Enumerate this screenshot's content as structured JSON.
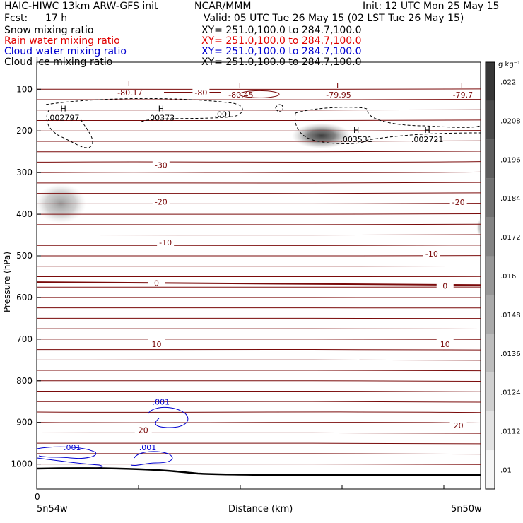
{
  "header": {
    "title_left": "HAIC-HIWC 13km ARW-GFS init",
    "title_center": "NCAR/MMM",
    "init": "Init: 12 UTC Mon 25 May 15",
    "fcst_label": "Fcst:",
    "fcst_value": "17 h",
    "valid": "Valid: 05 UTC Tue 26 May 15 (02 LST Tue 26 May 15)"
  },
  "fields": [
    {
      "name": "Snow mixing ratio",
      "xy": "XY= 251.0,100.0 to 284.7,100.0",
      "color": "#000000"
    },
    {
      "name": "Rain water mixing ratio",
      "xy": "XY= 251.0,100.0 to 284.7,100.0",
      "color": "#e00000"
    },
    {
      "name": "Cloud water mixing ratio",
      "xy": "XY= 251.0,100.0 to 284.7,100.0",
      "color": "#0000d0"
    },
    {
      "name": "Cloud ice mixing ratio",
      "xy": "XY= 251.0,100.0 to 284.7,100.0",
      "color": "#000000"
    }
  ],
  "chart_data": {
    "type": "cross-section",
    "xlabel": "Distance (km)",
    "ylabel": "Pressure (hPa)",
    "x_ticks": [
      "0"
    ],
    "x_left_label": "5n54w",
    "x_right_label": "5n50w",
    "yticks": [
      100,
      200,
      300,
      400,
      500,
      600,
      700,
      800,
      900,
      1000
    ],
    "ylim": [
      1060,
      35
    ],
    "temperature_labels": [
      {
        "value": "-80",
        "p": 108,
        "x": 0.37
      },
      {
        "value": "-30",
        "p": 282,
        "x": 0.28
      },
      {
        "value": "-20",
        "p": 370,
        "x": 0.28
      },
      {
        "value": "-20",
        "p": 371,
        "x": 0.95
      },
      {
        "value": "-10",
        "p": 468,
        "x": 0.29
      },
      {
        "value": "-10",
        "p": 495,
        "x": 0.89
      },
      {
        "value": "0",
        "p": 565,
        "x": 0.27
      },
      {
        "value": "0",
        "p": 572,
        "x": 0.92
      },
      {
        "value": "10",
        "p": 712,
        "x": 0.27
      },
      {
        "value": "10",
        "p": 712,
        "x": 0.92
      },
      {
        "value": "20",
        "p": 918,
        "x": 0.24
      },
      {
        "value": "20",
        "p": 907,
        "x": 0.95
      }
    ],
    "extrema": [
      {
        "mark": "L",
        "value": "-80.17",
        "p": 110,
        "x": 0.21
      },
      {
        "mark": "L",
        "value": "-80.45",
        "p": 115,
        "x": 0.46
      },
      {
        "mark": "L",
        "value": "-79.95",
        "p": 115,
        "x": 0.68
      },
      {
        "mark": "L",
        "value": "-79.7",
        "p": 115,
        "x": 0.96
      },
      {
        "mark": "H",
        "value": ".002797",
        "p": 170,
        "x": 0.06
      },
      {
        "mark": "H",
        "value": ".00373",
        "p": 170,
        "x": 0.28
      },
      {
        "mark": "H",
        "value": ".003531",
        "p": 222,
        "x": 0.72
      },
      {
        "mark": "H",
        "value": ".002721",
        "p": 222,
        "x": 0.88
      }
    ],
    "snow_contour_labels": [
      {
        "value": ".001",
        "p": 160,
        "x": 0.42
      }
    ],
    "cloud_water_labels": [
      {
        "value": ".001",
        "p": 850,
        "x": 0.28
      },
      {
        "value": ".001",
        "p": 960,
        "x": 0.08
      },
      {
        "value": ".001",
        "p": 960,
        "x": 0.25
      }
    ],
    "colorbar": {
      "unit": "g kg⁻¹",
      "labels": [
        ".01",
        ".0112",
        ".0124",
        ".0136",
        ".0148",
        ".016",
        ".0172",
        ".0184",
        ".0196",
        ".0208",
        ".022"
      ]
    }
  }
}
